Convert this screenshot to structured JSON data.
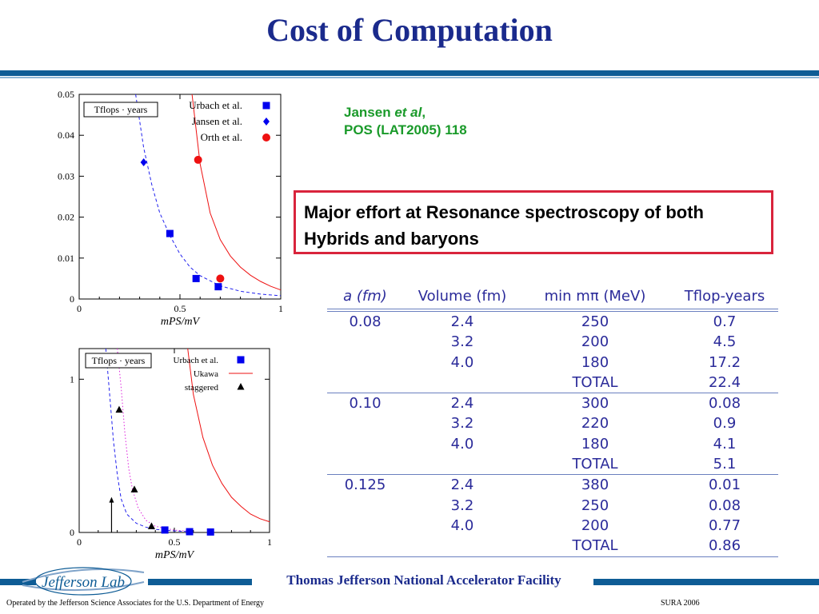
{
  "title": "Cost of Computation",
  "reference": {
    "line1_prefix": "Jansen ",
    "line1_italic": "et al",
    "line1_suffix": ",",
    "line2": "POS (LAT2005) 118"
  },
  "callout": "Major effort at Resonance spectroscopy of both Hybrids and baryons",
  "colors": {
    "title": "#1a2a8c",
    "rule": "#0e5c95",
    "reference": "#1a9a2a",
    "callout_border": "#d9243c",
    "table_text": "#2b2b9a",
    "blue_marker": "#0000ee",
    "red_marker": "#ee1111"
  },
  "chart_data": [
    {
      "type": "scatter",
      "legend_box": "Tflops · years",
      "xlabel": "mPS/mV",
      "xlim": [
        0,
        1
      ],
      "ylim": [
        0,
        0.05
      ],
      "xticks": [
        "0",
        "0.5",
        "1"
      ],
      "yticks": [
        "0",
        "0.01",
        "0.02",
        "0.03",
        "0.04",
        "0.05"
      ],
      "legend_position": "top-right",
      "series": [
        {
          "name": "Urbach et al.",
          "marker": "square",
          "color": "#0000ee",
          "points": [
            [
              0.45,
              0.016
            ],
            [
              0.58,
              0.005
            ],
            [
              0.69,
              0.003
            ]
          ]
        },
        {
          "name": "Jansen et al.",
          "marker": "diamond",
          "color": "#0000ee",
          "points": [
            [
              0.32,
              0.0334
            ]
          ]
        },
        {
          "name": "Orth et al.",
          "marker": "circle",
          "color": "#ee1111",
          "points": [
            [
              0.59,
              0.034
            ],
            [
              0.7,
              0.005
            ]
          ]
        }
      ],
      "curves": [
        {
          "style": "blue-dashed",
          "points": [
            [
              0.28,
              0.05
            ],
            [
              0.32,
              0.037
            ],
            [
              0.36,
              0.028
            ],
            [
              0.4,
              0.021
            ],
            [
              0.45,
              0.0155
            ],
            [
              0.5,
              0.011
            ],
            [
              0.55,
              0.0078
            ],
            [
              0.6,
              0.0057
            ],
            [
              0.7,
              0.0032
            ],
            [
              0.8,
              0.0019
            ],
            [
              0.9,
              0.0012
            ],
            [
              1.0,
              0.0008
            ]
          ]
        },
        {
          "style": "red-solid",
          "points": [
            [
              0.56,
              0.05
            ],
            [
              0.6,
              0.033
            ],
            [
              0.65,
              0.021
            ],
            [
              0.7,
              0.0145
            ],
            [
              0.75,
              0.0105
            ],
            [
              0.8,
              0.0078
            ],
            [
              0.85,
              0.0058
            ],
            [
              0.9,
              0.0043
            ],
            [
              0.95,
              0.0031
            ],
            [
              1.0,
              0.0022
            ]
          ]
        }
      ]
    },
    {
      "type": "scatter",
      "legend_box": "Tflops · years",
      "xlabel": "mPS/mV",
      "xlim": [
        0,
        1
      ],
      "ylim": [
        0,
        1.2
      ],
      "xticks": [
        "0",
        "0.5",
        "1"
      ],
      "yticks": [
        "0",
        "1"
      ],
      "legend_position": "top-right",
      "series": [
        {
          "name": "Urbach et al.",
          "marker": "square",
          "color": "#0000ee",
          "points": [
            [
              0.45,
              0.016
            ],
            [
              0.58,
              0.005
            ],
            [
              0.69,
              0.003
            ]
          ]
        },
        {
          "name": "Ukawa",
          "marker": "line",
          "color": "#ee1111",
          "points": []
        },
        {
          "name": "staggered",
          "marker": "triangle",
          "color": "#000000",
          "points": [
            [
              0.21,
              0.8
            ],
            [
              0.29,
              0.28
            ],
            [
              0.38,
              0.04
            ]
          ]
        }
      ],
      "curves": [
        {
          "style": "blue-dashed",
          "points": [
            [
              0.14,
              1.2
            ],
            [
              0.16,
              0.9
            ],
            [
              0.18,
              0.6
            ],
            [
              0.2,
              0.38
            ],
            [
              0.22,
              0.22
            ],
            [
              0.25,
              0.12
            ],
            [
              0.3,
              0.06
            ],
            [
              0.35,
              0.035
            ],
            [
              0.4,
              0.02
            ],
            [
              0.5,
              0.01
            ],
            [
              0.6,
              0.005
            ]
          ]
        },
        {
          "style": "magenta-dotted",
          "points": [
            [
              0.2,
              1.2
            ],
            [
              0.22,
              0.95
            ],
            [
              0.24,
              0.65
            ],
            [
              0.26,
              0.42
            ],
            [
              0.28,
              0.28
            ],
            [
              0.31,
              0.16
            ],
            [
              0.35,
              0.08
            ],
            [
              0.4,
              0.04
            ],
            [
              0.5,
              0.015
            ],
            [
              0.6,
              0.006
            ]
          ]
        },
        {
          "style": "red-solid",
          "points": [
            [
              0.57,
              1.2
            ],
            [
              0.6,
              0.9
            ],
            [
              0.65,
              0.62
            ],
            [
              0.7,
              0.44
            ],
            [
              0.75,
              0.32
            ],
            [
              0.8,
              0.23
            ],
            [
              0.85,
              0.17
            ],
            [
              0.9,
              0.12
            ],
            [
              0.95,
              0.09
            ],
            [
              1.0,
              0.07
            ]
          ]
        }
      ],
      "arrow": {
        "x": 0.17,
        "y_from": 0.0,
        "y_to": 0.2
      }
    }
  ],
  "table": {
    "headers": [
      "a (fm)",
      "Volume (fm)",
      "min mπ (MeV)",
      "Tflop-years"
    ],
    "rows": [
      [
        "0.08",
        "2.4",
        "250",
        "0.7"
      ],
      [
        "",
        "3.2",
        "200",
        "4.5"
      ],
      [
        "",
        "4.0",
        "180",
        "17.2"
      ],
      [
        "",
        "",
        "TOTAL",
        "22.4"
      ],
      [
        "0.10",
        "2.4",
        "300",
        "0.08"
      ],
      [
        "",
        "3.2",
        "220",
        "0.9"
      ],
      [
        "",
        "4.0",
        "180",
        "4.1"
      ],
      [
        "",
        "",
        "TOTAL",
        "5.1"
      ],
      [
        "0.125",
        "2.4",
        "380",
        "0.01"
      ],
      [
        "",
        "3.2",
        "250",
        "0.08"
      ],
      [
        "",
        "4.0",
        "200",
        "0.77"
      ],
      [
        "",
        "",
        "TOTAL",
        "0.86"
      ]
    ]
  },
  "footer": {
    "facility": "Thomas Jefferson National Accelerator Facility",
    "logo_text": "Jefferson Lab",
    "operated_by": "Operated by the Jefferson Science Associates for the U.S. Department of  Energy",
    "event": "SURA  2006"
  }
}
